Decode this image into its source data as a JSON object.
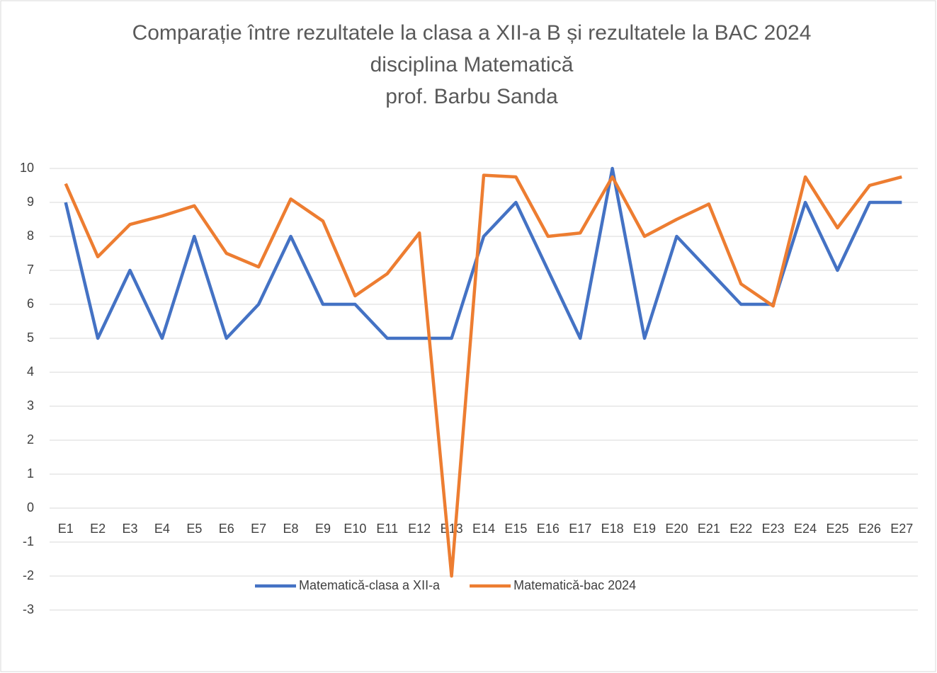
{
  "chart_data": {
    "type": "line",
    "title": [
      "Comparație între rezultatele la clasa a XII-a B și rezultatele la BAC 2024",
      "disciplina Matematică",
      "prof. Barbu Sanda"
    ],
    "categories": [
      "E1",
      "E2",
      "E3",
      "E4",
      "E5",
      "E6",
      "E7",
      "E8",
      "E9",
      "E10",
      "E11",
      "E12",
      "E13",
      "E14",
      "E15",
      "E16",
      "E17",
      "E18",
      "E19",
      "E20",
      "E21",
      "E22",
      "E23",
      "E24",
      "E25",
      "E26",
      "E27"
    ],
    "series": [
      {
        "name": "Matematică-clasa a XII-a",
        "color": "#4472c4",
        "values": [
          9,
          5,
          7,
          5,
          8,
          5,
          6,
          8,
          6,
          6,
          5,
          5,
          5,
          8,
          9,
          7,
          5,
          10,
          5,
          8,
          7,
          6,
          6,
          9,
          7,
          9,
          9
        ]
      },
      {
        "name": "Matematică-bac 2024",
        "color": "#ed7d31",
        "values": [
          9.55,
          7.4,
          8.35,
          8.6,
          8.9,
          7.5,
          7.1,
          9.1,
          8.45,
          6.25,
          6.9,
          8.1,
          -2,
          9.8,
          9.75,
          8,
          8.1,
          9.75,
          8,
          8.5,
          8.95,
          6.6,
          5.95,
          9.75,
          8.25,
          9.5,
          9.75
        ]
      }
    ],
    "ylim": [
      -3,
      10
    ],
    "yticks": [
      -3,
      -2,
      -1,
      0,
      1,
      2,
      3,
      4,
      5,
      6,
      7,
      8,
      9,
      10
    ],
    "grid": true,
    "legend": "bottom"
  }
}
